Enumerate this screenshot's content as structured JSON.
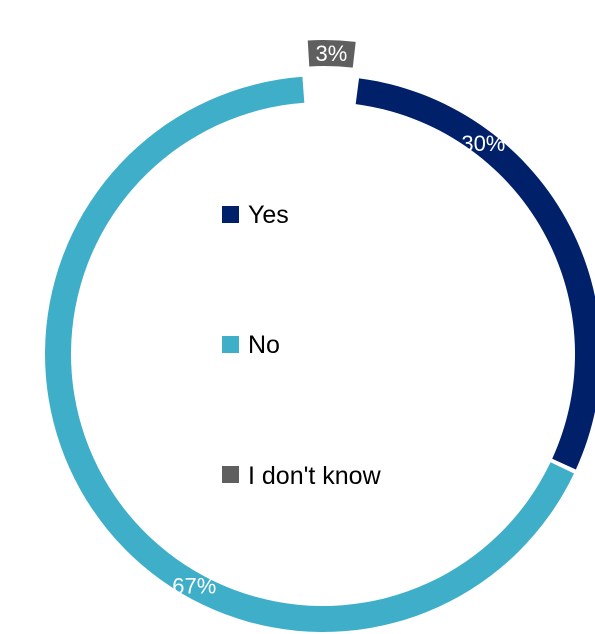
{
  "chart_data": {
    "type": "pie",
    "style": "donut",
    "title": "",
    "categories": [
      "Yes",
      "No",
      "I don't know"
    ],
    "values": [
      30,
      67,
      3
    ],
    "value_labels": [
      "30%",
      "67%",
      "3%"
    ],
    "colors": [
      "#002069",
      "#3FAEC8",
      "#5F5F5F"
    ],
    "legend": {
      "placement": "center",
      "entries": [
        "Yes",
        "No",
        "I don't know"
      ]
    },
    "exploded_slice": "I don't know"
  }
}
